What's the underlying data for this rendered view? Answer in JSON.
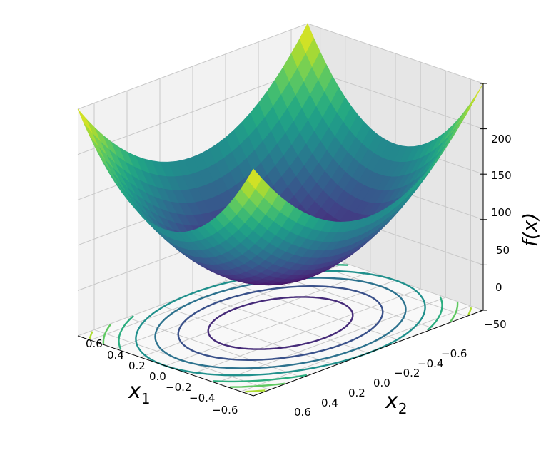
{
  "chart_data": {
    "type": "surface3d",
    "function": "f(x) = 200·(x₁² + x₂²)",
    "colormap": "viridis",
    "grid": true,
    "x1": {
      "label": "x",
      "subscript": "1",
      "ticks": [
        "0.6",
        "0.4",
        "0.2",
        "0.0",
        "−0.2",
        "−0.4",
        "−0.6"
      ],
      "lim": [
        -0.7,
        0.7
      ]
    },
    "x2": {
      "label": "x",
      "subscript": "2",
      "ticks": [
        "0.6",
        "0.4",
        "0.2",
        "0.0",
        "−0.2",
        "−0.4",
        "−0.6"
      ],
      "lim": [
        -0.7,
        0.7
      ]
    },
    "z": {
      "label": "f(x)",
      "ticks": [
        "200",
        "150",
        "100",
        "50",
        "0",
        "−50"
      ],
      "lim": [
        -50,
        200
      ]
    },
    "surface_range": [
      0,
      200
    ],
    "contour_levels": [
      25,
      50,
      75,
      100,
      125,
      150,
      175
    ],
    "contour_offset": -50
  }
}
